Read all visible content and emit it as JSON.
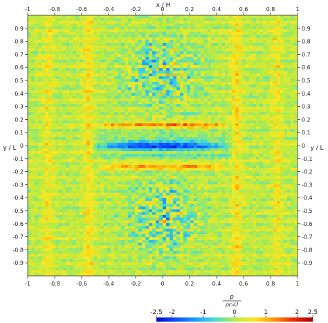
{
  "chart_data": {
    "type": "heatmap",
    "xlabel": "x / H",
    "ylabel": "y / L",
    "x_ticks": [
      -1,
      -0.8,
      -0.6,
      -0.4,
      -0.2,
      0,
      0.2,
      0.4,
      0.6,
      0.8,
      1
    ],
    "y_ticks": [
      0.9,
      0.8,
      0.7,
      0.6,
      0.5,
      0.4,
      0.3,
      0.2,
      0.1,
      0,
      -0.1,
      -0.2,
      -0.3,
      -0.4,
      -0.5,
      -0.6,
      -0.7,
      -0.8,
      -0.9
    ],
    "xlim": [
      -1,
      1
    ],
    "ylim": [
      -1,
      1
    ],
    "colorbar": {
      "label_numerator": "p",
      "label_denominator": "ρc₀U",
      "ticks": [
        -2.5,
        -2,
        -1,
        0,
        1,
        2,
        2.5
      ],
      "range": [
        -2.5,
        2.5
      ],
      "colormap": [
        "#0000c8",
        "#0a50ff",
        "#1e9bff",
        "#46dcd2",
        "#b4eb46",
        "#ffe61e",
        "#ff9600",
        "#f02800",
        "#a00000"
      ]
    },
    "field": {
      "background_value": 0.1,
      "features": [
        {
          "kind": "central-band",
          "y": 0.0,
          "x_extent": [
            -0.55,
            0.55
          ],
          "value": -2.1
        },
        {
          "kind": "band",
          "y": 0.16,
          "x_extent": [
            -0.5,
            0.5
          ],
          "value": 1.2
        },
        {
          "kind": "band",
          "y": -0.16,
          "x_extent": [
            -0.5,
            0.5
          ],
          "value": 1.2
        },
        {
          "kind": "band",
          "y": 0.08,
          "x_extent": [
            -0.6,
            0.6
          ],
          "value": -0.4
        },
        {
          "kind": "band",
          "y": -0.08,
          "x_extent": [
            -0.6,
            0.6
          ],
          "value": -0.4
        },
        {
          "kind": "noisy-patch",
          "x": 0.0,
          "y": 0.55,
          "value": -0.4
        },
        {
          "kind": "noisy-patch",
          "x": 0.0,
          "y": -0.55,
          "value": -0.4
        },
        {
          "kind": "vertical-stripe",
          "x": -0.55,
          "value": 0.5
        },
        {
          "kind": "vertical-stripe",
          "x": 0.55,
          "value": 0.5
        },
        {
          "kind": "vertical-stripe",
          "x": -0.85,
          "value": 0.4
        },
        {
          "kind": "vertical-stripe",
          "x": 0.85,
          "value": 0.4
        }
      ]
    }
  }
}
